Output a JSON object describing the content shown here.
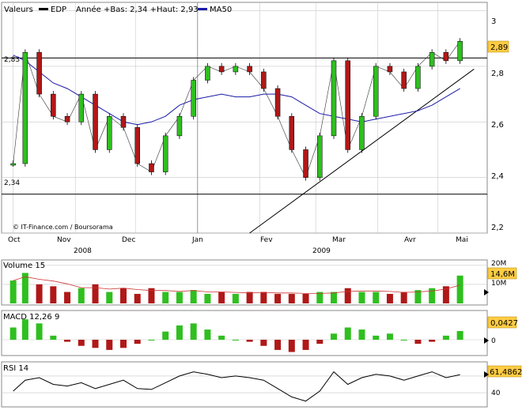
{
  "legend": {
    "valeurs_label": "Valeurs",
    "symbol": "EDP",
    "range_label": "Année +Bas: 2,34 +Haut: 2,93",
    "ma_label": "MA50"
  },
  "colors": {
    "up": "#2fbf1f",
    "down": "#b01818",
    "ma": "#1a1aa8",
    "grid": "#c8c8c8",
    "badge": "#ffcc44",
    "volume_ma": "#cc3333"
  },
  "credit": "© IT-Finance.com / Boursorama",
  "price_panel": {
    "y_ticks": [
      "3",
      "2,8",
      "2,6",
      "2,4",
      "2,2"
    ],
    "last_badge": "2,89",
    "line_labels": [
      "2,83",
      "2,34"
    ],
    "x_months": [
      "Oct",
      "Nov",
      "Dec",
      "Jan",
      "Fev",
      "Mar",
      "Avr",
      "Mai"
    ],
    "x_years": [
      "2008",
      "2009"
    ]
  },
  "volume_panel": {
    "title": "Volume 15",
    "ticks": [
      "20M",
      "10M"
    ],
    "badge": "14,6M"
  },
  "macd_panel": {
    "title": "MACD 12,26 9",
    "ticks": [
      "0"
    ],
    "badge": "0,0427"
  },
  "rsi_panel": {
    "title": "RSI 14",
    "ticks": [
      "40"
    ],
    "badge": "61,4862"
  },
  "chart_data": [
    {
      "type": "candlestick",
      "title": "EDP",
      "ylim": [
        2.2,
        3.03
      ],
      "horizontal_levels": [
        2.83,
        2.34
      ],
      "x": [
        "2008-10-01",
        "2008-10-07",
        "2008-10-14",
        "2008-10-21",
        "2008-10-28",
        "2008-11-04",
        "2008-11-11",
        "2008-11-18",
        "2008-11-25",
        "2008-12-02",
        "2008-12-09",
        "2008-12-16",
        "2008-12-23",
        "2008-12-30",
        "2009-01-06",
        "2009-01-13",
        "2009-01-20",
        "2009-01-27",
        "2009-02-03",
        "2009-02-10",
        "2009-02-17",
        "2009-02-24",
        "2009-03-03",
        "2009-03-10",
        "2009-03-17",
        "2009-03-24",
        "2009-03-31",
        "2009-04-07",
        "2009-04-14",
        "2009-04-21",
        "2009-04-28",
        "2009-05-05",
        "2009-05-12"
      ],
      "close": [
        2.45,
        2.85,
        2.7,
        2.62,
        2.6,
        2.7,
        2.5,
        2.62,
        2.58,
        2.45,
        2.42,
        2.55,
        2.62,
        2.75,
        2.8,
        2.78,
        2.8,
        2.78,
        2.72,
        2.62,
        2.5,
        2.4,
        2.55,
        2.82,
        2.5,
        2.62,
        2.8,
        2.78,
        2.72,
        2.8,
        2.85,
        2.82,
        2.89
      ],
      "ma50": [
        2.84,
        2.82,
        2.78,
        2.74,
        2.72,
        2.69,
        2.66,
        2.63,
        2.6,
        2.59,
        2.6,
        2.62,
        2.66,
        2.68,
        2.69,
        2.7,
        2.69,
        2.69,
        2.7,
        2.7,
        2.69,
        2.66,
        2.63,
        2.62,
        2.61,
        2.6,
        2.61,
        2.62,
        2.63,
        2.64,
        2.66,
        2.69,
        2.72
      ],
      "trendline": {
        "from": [
          "2009-01-27",
          2.2
        ],
        "to": [
          "2009-05-19",
          2.79
        ]
      }
    },
    {
      "type": "bar",
      "title": "Volume 15",
      "unit": "M",
      "values": [
        12,
        16,
        10,
        9,
        6,
        8,
        10,
        6,
        8,
        5,
        8,
        6,
        6,
        7,
        5,
        6,
        5,
        6,
        6,
        5,
        5,
        5,
        6,
        6,
        8,
        6,
        6,
        5,
        6,
        7,
        8,
        9,
        14.6
      ]
    },
    {
      "type": "bar",
      "title": "MACD 12,26 9",
      "values": [
        0.06,
        0.1,
        0.08,
        0.02,
        -0.01,
        -0.03,
        -0.04,
        -0.05,
        -0.04,
        -0.02,
        0.0,
        0.04,
        0.07,
        0.08,
        0.05,
        0.02,
        0.0,
        -0.01,
        -0.03,
        -0.05,
        -0.06,
        -0.05,
        -0.02,
        0.03,
        0.06,
        0.05,
        0.02,
        0.03,
        0.0,
        -0.02,
        -0.01,
        0.02,
        0.0427
      ]
    },
    {
      "type": "line",
      "title": "RSI 14",
      "values": [
        42,
        55,
        58,
        50,
        48,
        52,
        45,
        50,
        55,
        45,
        44,
        52,
        60,
        65,
        62,
        58,
        60,
        58,
        55,
        45,
        35,
        30,
        42,
        65,
        50,
        58,
        62,
        60,
        55,
        60,
        65,
        58,
        61.49
      ]
    }
  ]
}
